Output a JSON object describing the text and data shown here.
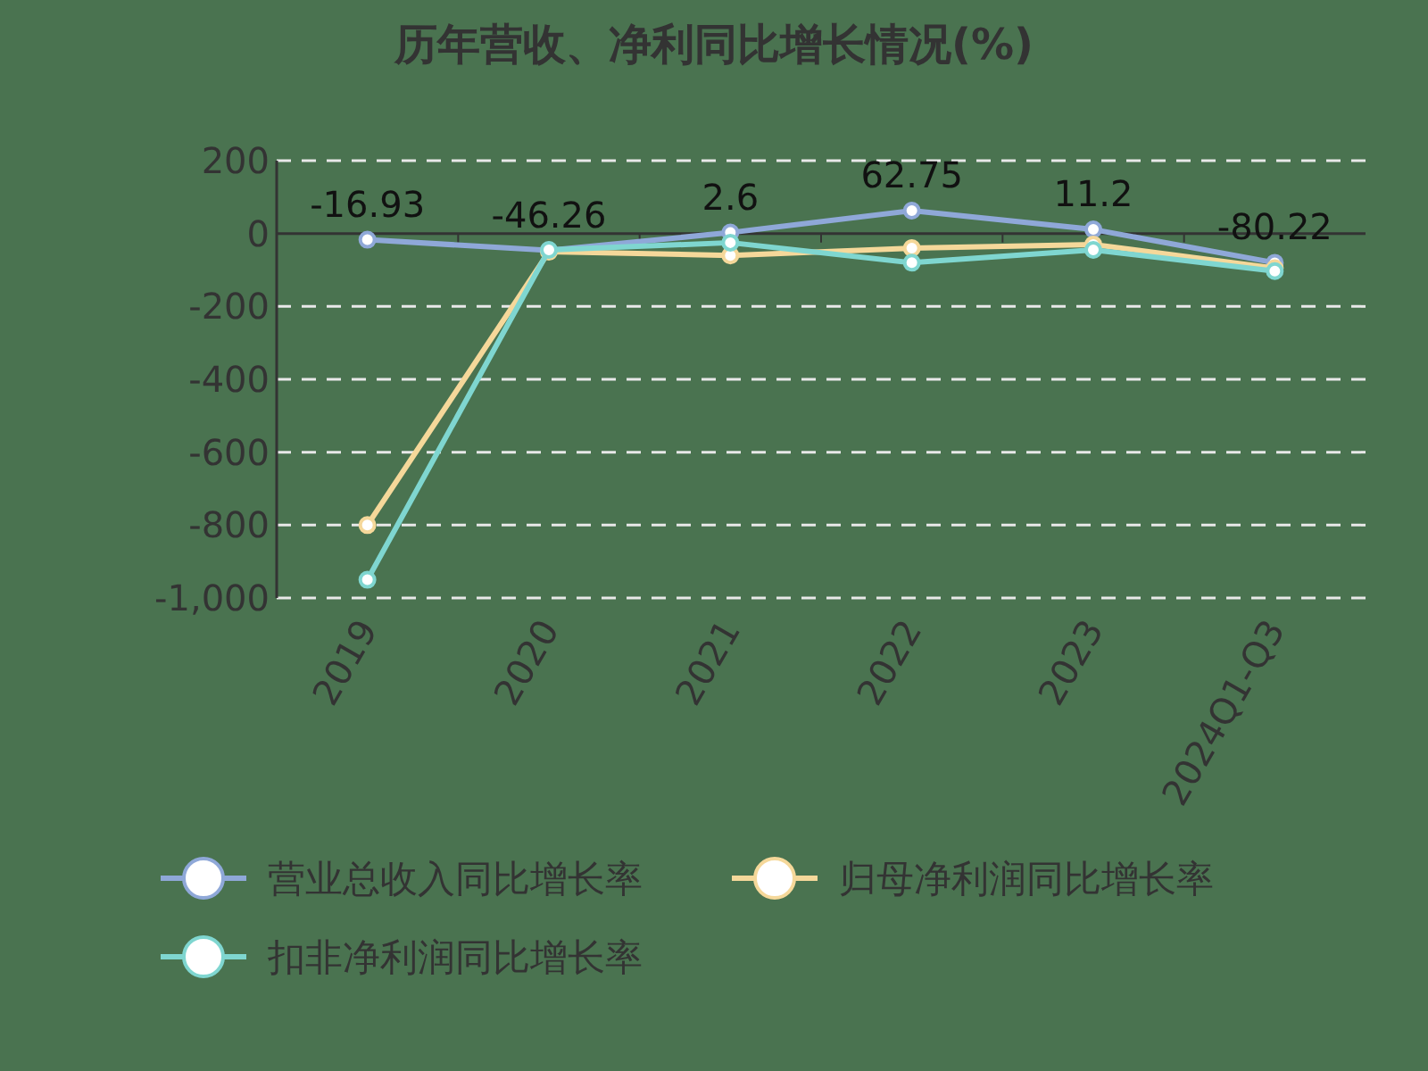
{
  "chart_data": {
    "type": "line",
    "title": "历年营收、净利同比增长情况(%)",
    "categories": [
      "2019",
      "2020",
      "2021",
      "2022",
      "2023",
      "2024Q1-Q3"
    ],
    "series": [
      {
        "name": "营业总收入同比增长率",
        "color": "#8fa8d8",
        "values": [
          -16.93,
          -46.26,
          2.6,
          62.75,
          11.2,
          -80.22
        ],
        "value_labels": [
          "-16.93",
          "-46.26",
          "2.6",
          "62.75",
          "11.2",
          "-80.22"
        ]
      },
      {
        "name": "归母净利润同比增长率",
        "color": "#f5d89a",
        "values": [
          -800,
          -50,
          -60,
          -40,
          -30,
          -95
        ]
      },
      {
        "name": "扣非净利润同比增长率",
        "color": "#7fd6d0",
        "values": [
          -950,
          -45,
          -25,
          -80,
          -45,
          -103
        ]
      }
    ],
    "ylim": [
      -1000,
      200
    ],
    "yticks": [
      {
        "value": -1000,
        "label": "-1,000"
      },
      -800,
      -600,
      -400,
      -200,
      0,
      200
    ],
    "grid": "y",
    "legend": "bottom",
    "marker": "circle",
    "line_style": "solid"
  }
}
